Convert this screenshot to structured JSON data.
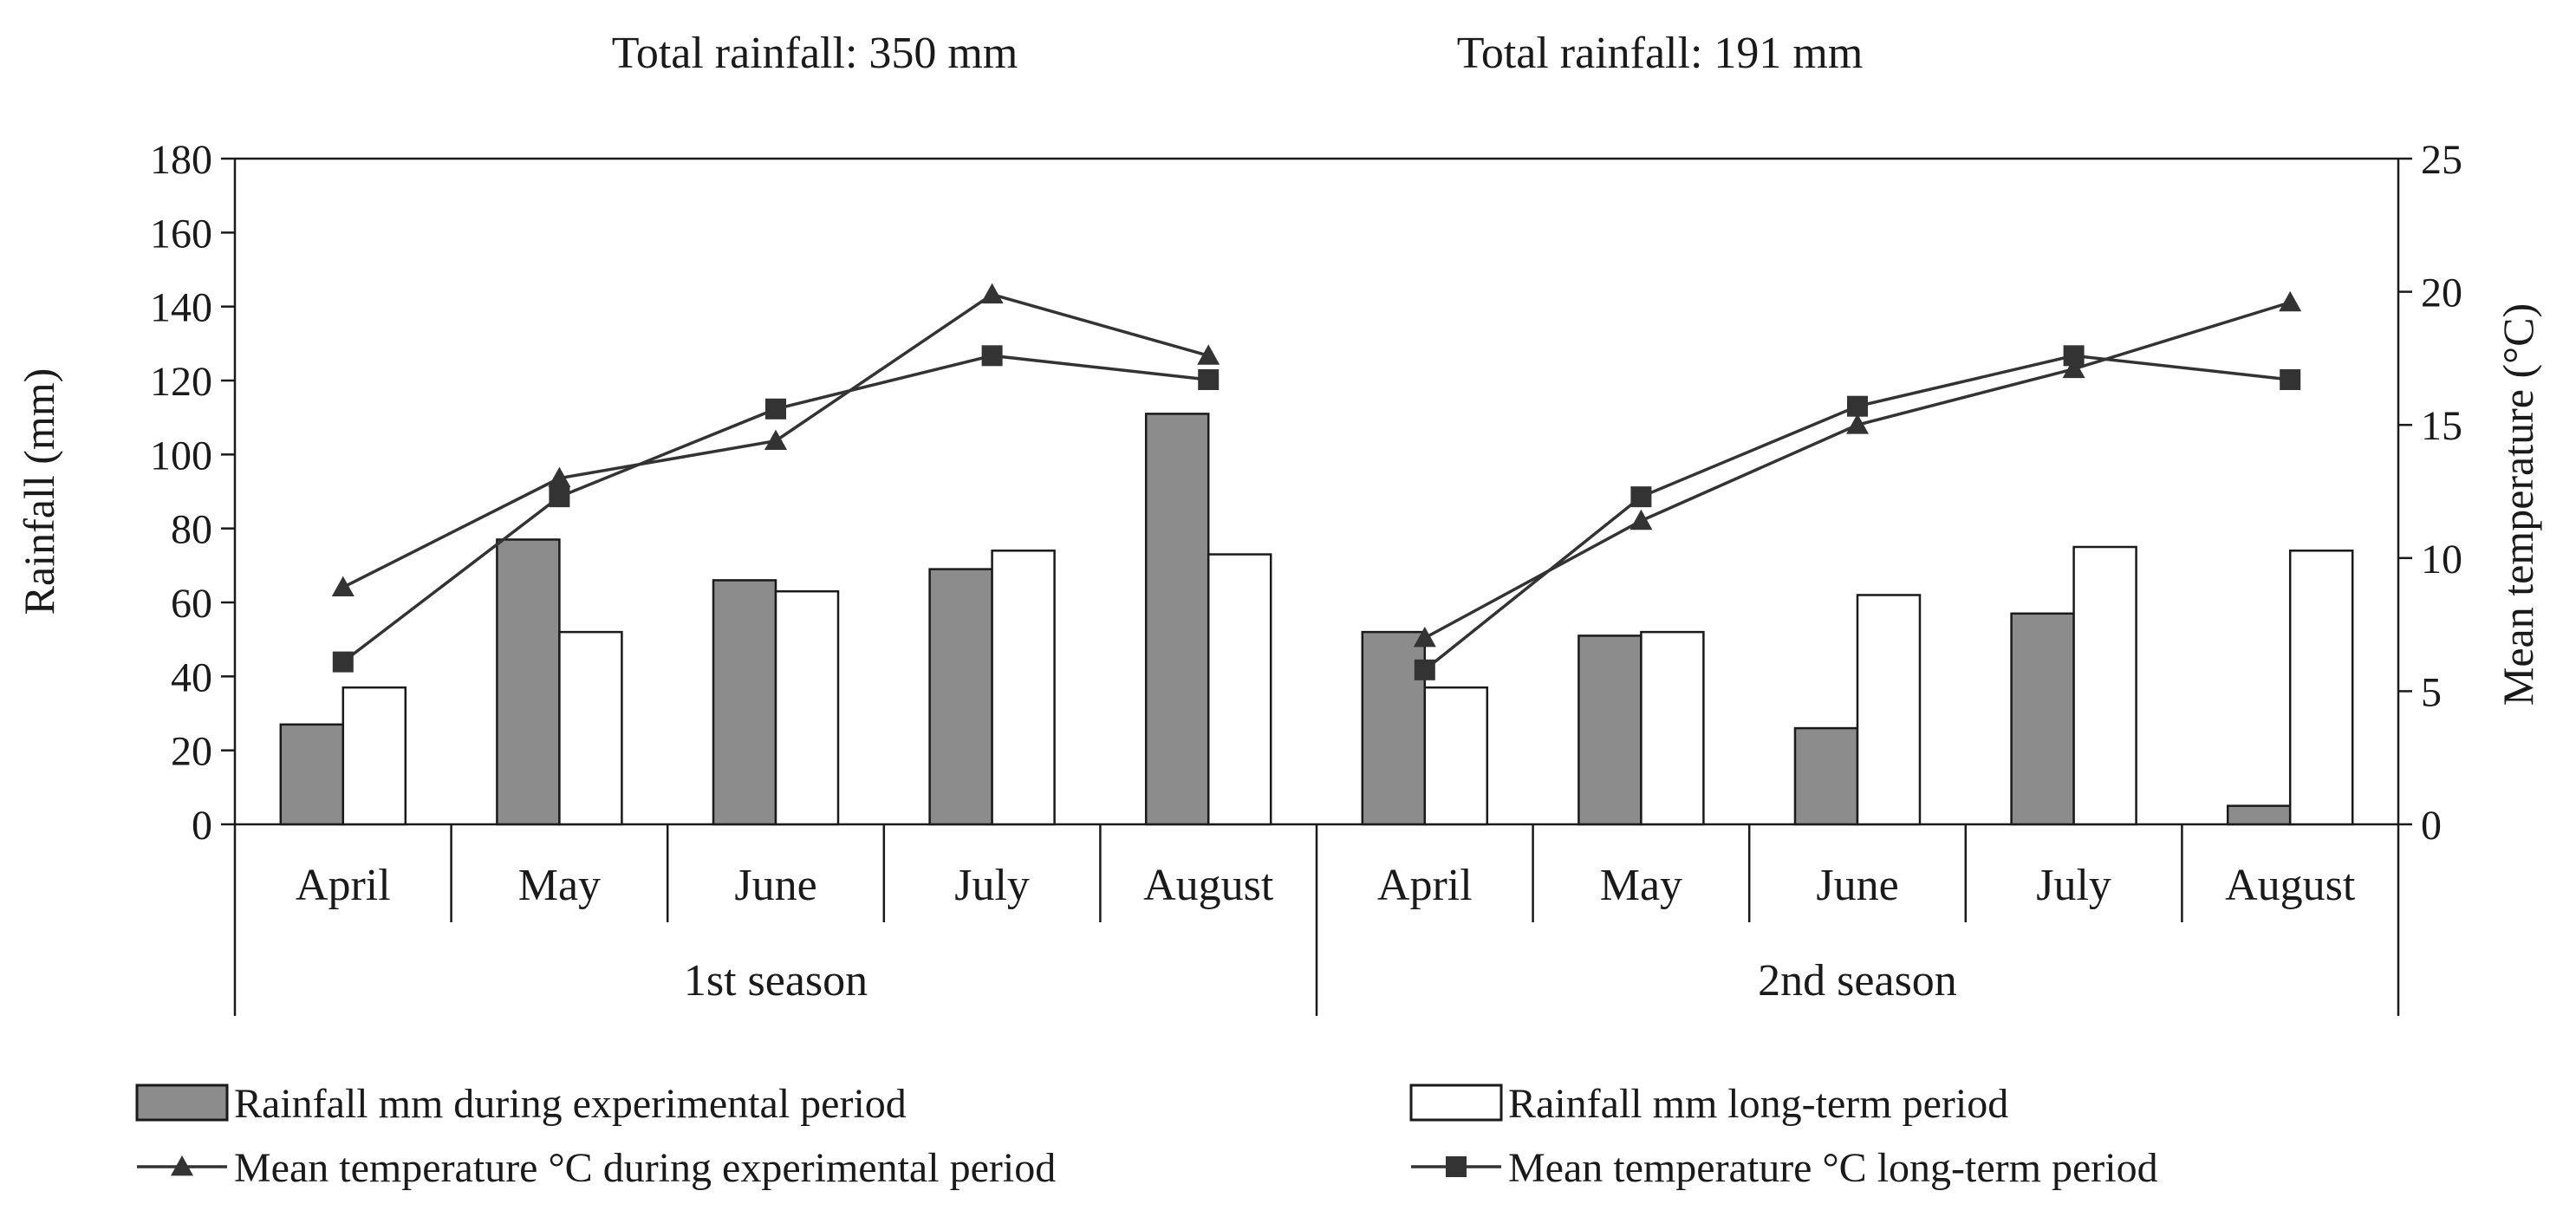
{
  "chart_data": {
    "type": "bar",
    "annotations": [
      "Total rainfall:  350 mm",
      "Total rainfall:  191 mm"
    ],
    "ylabel": "Rainfall (mm)",
    "y2label": "Mean temperature (°C)",
    "ylim": [
      0,
      180
    ],
    "y2lim": [
      0,
      25
    ],
    "yticks": [
      0,
      20,
      40,
      60,
      80,
      100,
      120,
      140,
      160,
      180
    ],
    "y2ticks": [
      0,
      5,
      10,
      15,
      20,
      25
    ],
    "grid": false,
    "legend_position": "bottom",
    "seasons": [
      {
        "label": "1st   season",
        "months": [
          "April",
          "May",
          "June",
          "July",
          "August"
        ]
      },
      {
        "label": "2nd season",
        "months": [
          "April",
          "May",
          "June",
          "July",
          "August"
        ]
      }
    ],
    "series": [
      {
        "name": "Rainfall mm during experimental period",
        "kind": "bar",
        "axis": "left",
        "color": "#8c8c8c",
        "values": [
          [
            27,
            77,
            66,
            69,
            111
          ],
          [
            52,
            51,
            26,
            57,
            5
          ]
        ]
      },
      {
        "name": "Rainfall mm long-term period",
        "kind": "bar",
        "axis": "left",
        "color": "#ffffff",
        "values": [
          [
            37,
            52,
            63,
            74,
            73
          ],
          [
            37,
            52,
            62,
            75,
            74
          ]
        ]
      },
      {
        "name": "Mean temperature °C during experimental period",
        "kind": "line",
        "marker": "triangle",
        "axis": "right",
        "color": "#333333",
        "values": [
          [
            8.9,
            13.0,
            14.4,
            19.9,
            17.6
          ],
          [
            7.0,
            11.4,
            15.0,
            17.1,
            19.6
          ]
        ]
      },
      {
        "name": "Mean temperature °C long-term period",
        "kind": "line",
        "marker": "square",
        "axis": "right",
        "color": "#333333",
        "values": [
          [
            6.1,
            12.3,
            15.6,
            17.6,
            16.7
          ],
          [
            5.8,
            12.3,
            15.7,
            17.6,
            16.7
          ]
        ]
      }
    ]
  }
}
